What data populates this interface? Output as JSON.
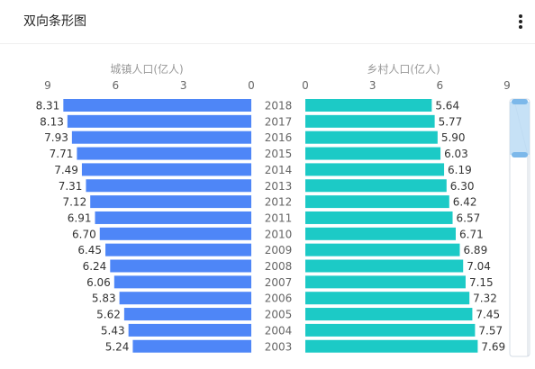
{
  "header": {
    "title": "双向条形图",
    "more_icon": "more-vertical-icon"
  },
  "chart_data": {
    "type": "bar",
    "orientation": "horizontal-diverging",
    "categories": [
      "2018",
      "2017",
      "2016",
      "2015",
      "2014",
      "2013",
      "2012",
      "2011",
      "2010",
      "2009",
      "2008",
      "2007",
      "2006",
      "2005",
      "2004",
      "2003"
    ],
    "series": [
      {
        "name": "城镇人口(亿人)",
        "color": "#4e86f7",
        "side": "left",
        "values": [
          8.31,
          8.13,
          7.93,
          7.71,
          7.49,
          7.31,
          7.12,
          6.91,
          6.7,
          6.45,
          6.24,
          6.06,
          5.83,
          5.62,
          5.43,
          5.24
        ]
      },
      {
        "name": "乡村人口(亿人)",
        "color": "#1ccac6",
        "side": "right",
        "values": [
          5.64,
          5.77,
          5.9,
          6.03,
          6.19,
          6.3,
          6.42,
          6.57,
          6.71,
          6.89,
          7.04,
          7.15,
          7.32,
          7.45,
          7.57,
          7.69
        ]
      }
    ],
    "left_axis": {
      "label": "城镇人口(亿人)",
      "ticks": [
        "9",
        "6",
        "3",
        "0"
      ],
      "range": [
        0,
        9
      ]
    },
    "right_axis": {
      "label": "乡村人口(亿人)",
      "ticks": [
        "0",
        "3",
        "6",
        "9"
      ],
      "range": [
        0,
        9
      ]
    },
    "grid": false,
    "scrollbar": {
      "visible": true,
      "color": "#bcdcf5"
    }
  }
}
